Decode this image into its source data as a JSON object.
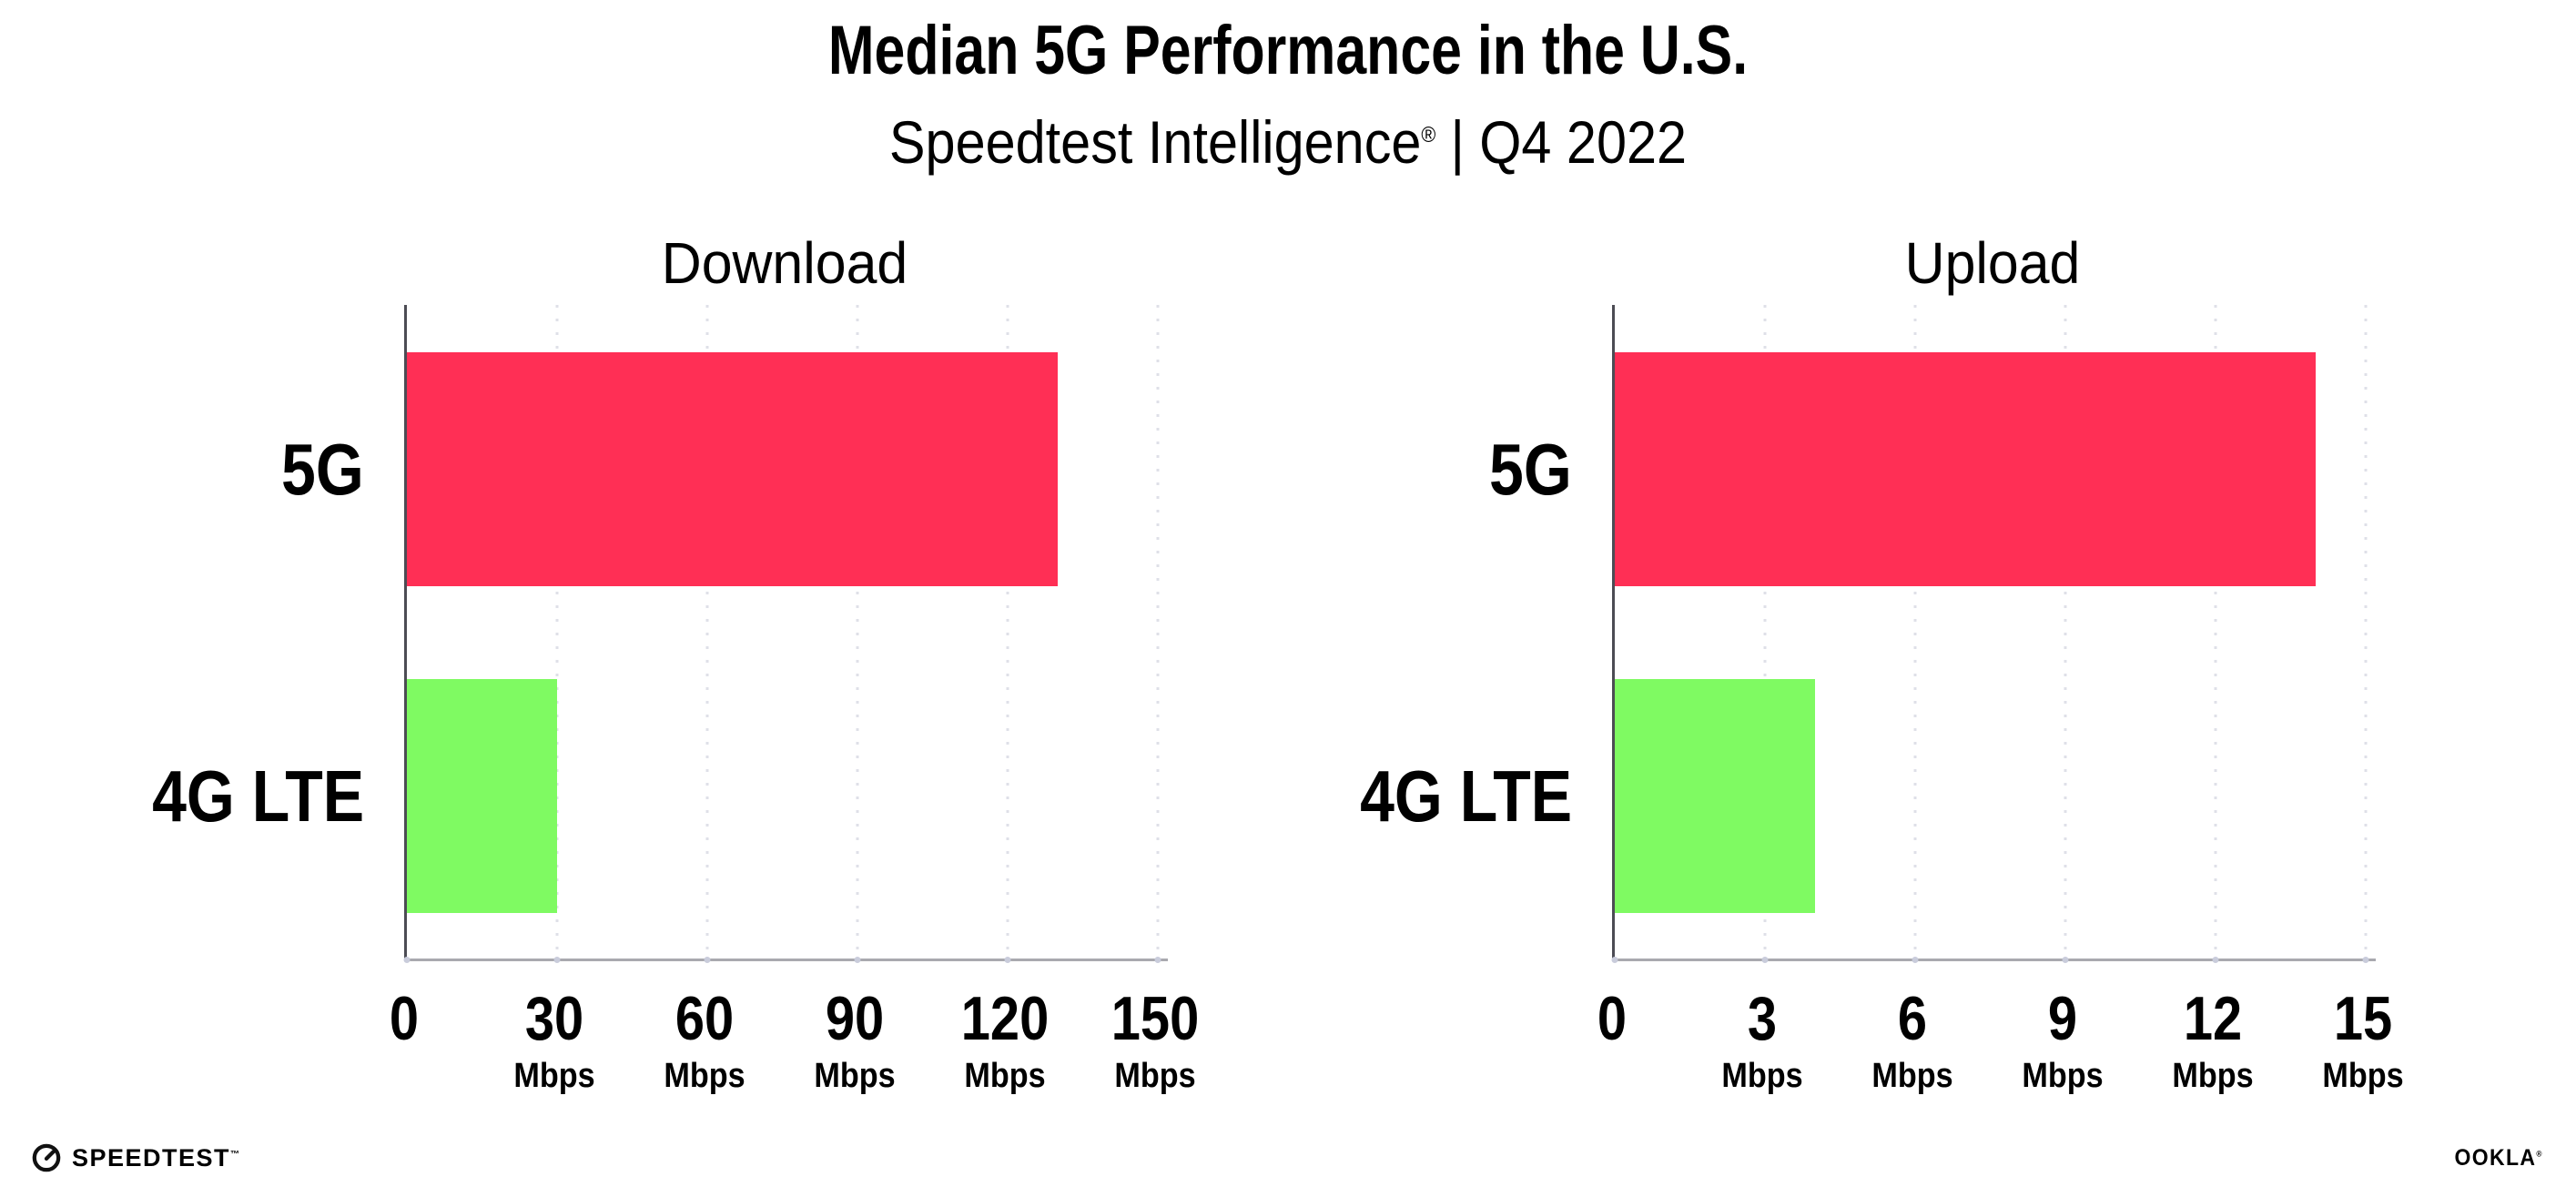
{
  "header": {
    "title": "Median 5G Performance in the U.S.",
    "subtitle_product": "Speedtest Intelligence",
    "subtitle_reg": "®",
    "subtitle_separator": "|",
    "subtitle_period": "Q4 2022"
  },
  "chart_data": [
    {
      "type": "bar",
      "orientation": "horizontal",
      "title": "Download",
      "categories": [
        "5G",
        "4G LTE"
      ],
      "values": [
        130,
        30
      ],
      "unit": "Mbps",
      "ticks": [
        0,
        30,
        60,
        90,
        120,
        150
      ],
      "xlim": [
        0,
        150
      ],
      "bar_colors": [
        "#FF2F55",
        "#7FFA62"
      ],
      "grid": "dotted-vertical",
      "legend": "none"
    },
    {
      "type": "bar",
      "orientation": "horizontal",
      "title": "Upload",
      "categories": [
        "5G",
        "4G LTE"
      ],
      "values": [
        14,
        4
      ],
      "unit": "Mbps",
      "ticks": [
        0,
        3,
        6,
        9,
        12,
        15
      ],
      "xlim": [
        0,
        15
      ],
      "bar_colors": [
        "#FF2F55",
        "#7FFA62"
      ],
      "grid": "dotted-vertical",
      "legend": "none"
    }
  ],
  "colors": {
    "bar_5g": "#FF2F55",
    "bar_4g": "#7FFA62",
    "grid": "#DFE0E8",
    "axis_x": "#A9A9AF",
    "axis_y": "#4C4C54",
    "tick_dot": "#C9CCDB",
    "text": "#000000"
  },
  "footer": {
    "speedtest_label": "SPEEDTEST",
    "speedtest_tm": "™",
    "gauge_icon": "speedtest-gauge-icon",
    "ookla_label": "OOKLA",
    "ookla_reg": "®"
  }
}
